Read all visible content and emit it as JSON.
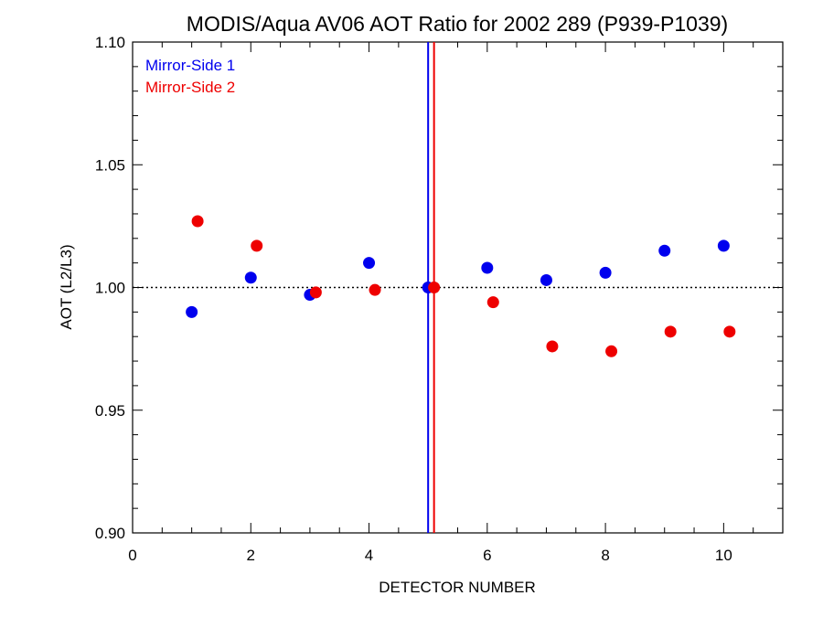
{
  "chart_data": {
    "type": "scatter",
    "title": "MODIS/Aqua AV06 AOT Ratio for 2002 289 (P939-P1039)",
    "xlabel": "DETECTOR NUMBER",
    "ylabel": "AOT (L2/L3)",
    "xlim": [
      0,
      11
    ],
    "ylim": [
      0.9,
      1.1
    ],
    "x_ticks": [
      0,
      2,
      4,
      6,
      8,
      10
    ],
    "x_tick_labels": [
      "0",
      "2",
      "4",
      "6",
      "8",
      "10"
    ],
    "y_ticks": [
      0.9,
      0.95,
      1.0,
      1.05,
      1.1
    ],
    "y_tick_labels": [
      "0.90",
      "0.95",
      "1.00",
      "1.05",
      "1.10"
    ],
    "reference_line": {
      "y": 1.0,
      "style": "dotted"
    },
    "vertical_lines": [
      {
        "x": 5.0,
        "color": "#0000ee"
      },
      {
        "x": 5.1,
        "color": "#ee0000"
      }
    ],
    "legend_position": "top-left",
    "series": [
      {
        "name": "Mirror-Side 1",
        "color": "#0000ee",
        "x": [
          1,
          2,
          3,
          4,
          5,
          6,
          7,
          8,
          9,
          10
        ],
        "y": [
          0.99,
          1.004,
          0.997,
          1.01,
          1.0,
          1.008,
          1.003,
          1.006,
          1.015,
          1.017
        ]
      },
      {
        "name": "Mirror-Side 2",
        "color": "#ee0000",
        "x": [
          1.1,
          2.1,
          3.1,
          4.1,
          5.1,
          6.1,
          7.1,
          8.1,
          9.1,
          10.1
        ],
        "y": [
          1.027,
          1.017,
          0.998,
          0.999,
          1.0,
          0.994,
          0.976,
          0.974,
          0.982,
          0.982
        ]
      }
    ]
  }
}
